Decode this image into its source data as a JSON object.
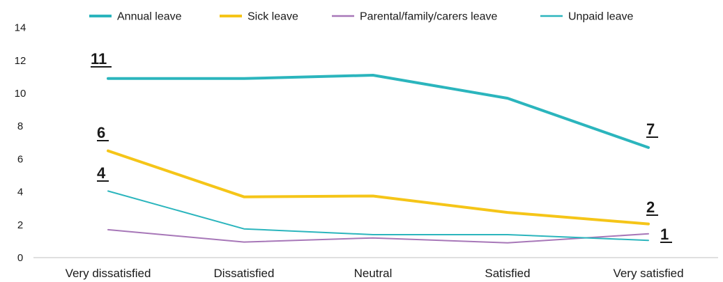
{
  "chart_data": {
    "type": "line",
    "title": "",
    "xlabel": "",
    "ylabel": "",
    "categories": [
      "Very dissatisfied",
      "Dissatisfied",
      "Neutral",
      "Satisfied",
      "Very satisfied"
    ],
    "ylim": [
      0,
      14
    ],
    "yticks": [
      0,
      2,
      4,
      6,
      8,
      10,
      12,
      14
    ],
    "grid": false,
    "legend_position": "top",
    "series": [
      {
        "name": "Annual leave",
        "color": "#2bb5bd",
        "width": "thick",
        "values": [
          10.9,
          10.9,
          11.1,
          9.7,
          6.7
        ]
      },
      {
        "name": "Sick leave",
        "color": "#f5c518",
        "width": "thick",
        "values": [
          6.5,
          3.7,
          3.75,
          2.75,
          2.05
        ]
      },
      {
        "name": "Parental/family/carers leave",
        "color": "#a777b8",
        "width": "thin",
        "values": [
          1.7,
          0.95,
          1.2,
          0.9,
          1.45
        ]
      },
      {
        "name": "Unpaid leave",
        "color": "#2bb5bd",
        "width": "thin",
        "values": [
          4.05,
          1.75,
          1.4,
          1.4,
          1.05
        ]
      }
    ],
    "annotations": [
      {
        "text": "11",
        "series": "Annual leave",
        "category": "Very dissatisfied"
      },
      {
        "text": "6",
        "series": "Sick leave",
        "category": "Very dissatisfied"
      },
      {
        "text": "4",
        "series": "Unpaid leave",
        "category": "Very dissatisfied"
      },
      {
        "text": "7",
        "series": "Annual leave",
        "category": "Very satisfied"
      },
      {
        "text": "2",
        "series": "Sick leave",
        "category": "Very satisfied"
      },
      {
        "text": "1",
        "series": "Unpaid leave",
        "category": "Very satisfied"
      }
    ]
  }
}
